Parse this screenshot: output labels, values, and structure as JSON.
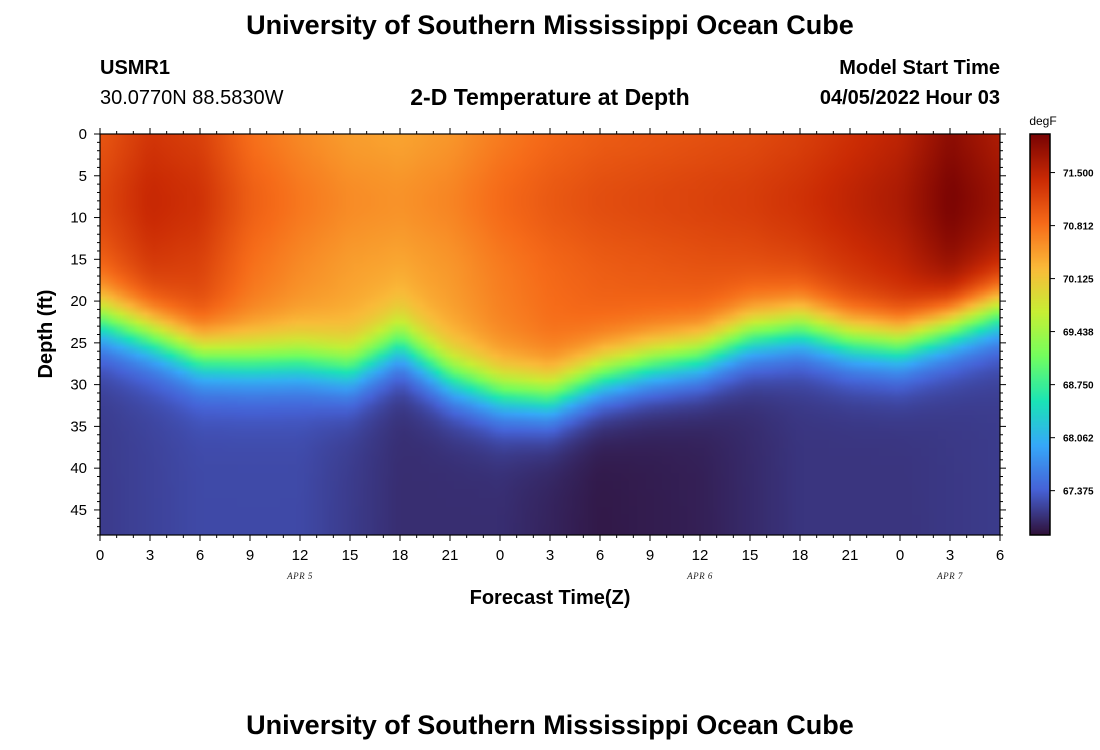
{
  "header": {
    "title": "University of Southern Mississippi Ocean Cube",
    "station_id": "USMR1",
    "coordinates": "30.0770N  88.5830W",
    "plot_title": "2-D Temperature at Depth",
    "model_start_label": "Model Start Time",
    "model_start_value": "04/05/2022 Hour 03"
  },
  "footer": {
    "title": "University of Southern Mississippi Ocean Cube"
  },
  "colors": {
    "colormap": [
      "#30123b",
      "#4662d7",
      "#36a8f9",
      "#1ae4b6",
      "#72fe5e",
      "#c7ef34",
      "#faba39",
      "#f66b19",
      "#ca2a04",
      "#7a0403"
    ]
  },
  "chart_data": {
    "type": "heatmap",
    "title": "2-D Temperature at Depth",
    "xlabel": "Forecast Time(Z)",
    "ylabel": "Depth (ft)",
    "x_hours_range": [
      0,
      54
    ],
    "x_ticks": [
      {
        "hour": 0,
        "label": "0"
      },
      {
        "hour": 3,
        "label": "3"
      },
      {
        "hour": 6,
        "label": "6"
      },
      {
        "hour": 9,
        "label": "9"
      },
      {
        "hour": 12,
        "label": "12"
      },
      {
        "hour": 15,
        "label": "15"
      },
      {
        "hour": 18,
        "label": "18"
      },
      {
        "hour": 21,
        "label": "21"
      },
      {
        "hour": 24,
        "label": "0"
      },
      {
        "hour": 27,
        "label": "3"
      },
      {
        "hour": 30,
        "label": "6"
      },
      {
        "hour": 33,
        "label": "9"
      },
      {
        "hour": 36,
        "label": "12"
      },
      {
        "hour": 39,
        "label": "15"
      },
      {
        "hour": 42,
        "label": "18"
      },
      {
        "hour": 45,
        "label": "21"
      },
      {
        "hour": 48,
        "label": "0"
      },
      {
        "hour": 51,
        "label": "3"
      },
      {
        "hour": 54,
        "label": "6"
      }
    ],
    "date_labels": [
      {
        "hour": 12,
        "label": "APR 5"
      },
      {
        "hour": 36,
        "label": "APR 6"
      },
      {
        "hour": 51,
        "label": "APR 7"
      }
    ],
    "y_range": [
      0,
      48
    ],
    "y_ticks": [
      0,
      5,
      10,
      15,
      20,
      25,
      30,
      35,
      40,
      45
    ],
    "colorbar": {
      "unit": "degF",
      "min": 66.8,
      "max": 72.0,
      "ticks": [
        "71.500",
        "70.812",
        "70.125",
        "69.438",
        "68.750",
        "68.062",
        "67.375"
      ]
    },
    "thermocline_depth_ft": [
      {
        "hour": 0,
        "depth": 22
      },
      {
        "hour": 3,
        "depth": 24
      },
      {
        "hour": 6,
        "depth": 26.5
      },
      {
        "hour": 9,
        "depth": 27
      },
      {
        "hour": 12,
        "depth": 27
      },
      {
        "hour": 15,
        "depth": 28
      },
      {
        "hour": 18,
        "depth": 25
      },
      {
        "hour": 21,
        "depth": 29
      },
      {
        "hour": 24,
        "depth": 31
      },
      {
        "hour": 27,
        "depth": 31.5
      },
      {
        "hour": 30,
        "depth": 29
      },
      {
        "hour": 33,
        "depth": 27.5
      },
      {
        "hour": 36,
        "depth": 26.5
      },
      {
        "hour": 39,
        "depth": 24
      },
      {
        "hour": 42,
        "depth": 23
      },
      {
        "hour": 45,
        "depth": 24.5
      },
      {
        "hour": 48,
        "depth": 25
      },
      {
        "hour": 51,
        "depth": 23
      },
      {
        "hour": 54,
        "depth": 21
      }
    ],
    "surface_temp_degF": [
      {
        "hour": 0,
        "value": 71.0
      },
      {
        "hour": 3,
        "value": 71.3
      },
      {
        "hour": 6,
        "value": 71.2
      },
      {
        "hour": 9,
        "value": 70.8
      },
      {
        "hour": 12,
        "value": 70.6
      },
      {
        "hour": 15,
        "value": 70.45
      },
      {
        "hour": 18,
        "value": 70.4
      },
      {
        "hour": 21,
        "value": 70.5
      },
      {
        "hour": 24,
        "value": 70.7
      },
      {
        "hour": 27,
        "value": 70.85
      },
      {
        "hour": 30,
        "value": 70.95
      },
      {
        "hour": 33,
        "value": 71.0
      },
      {
        "hour": 36,
        "value": 71.05
      },
      {
        "hour": 39,
        "value": 71.1
      },
      {
        "hour": 42,
        "value": 71.2
      },
      {
        "hour": 45,
        "value": 71.35
      },
      {
        "hour": 48,
        "value": 71.5
      },
      {
        "hour": 51,
        "value": 71.85
      },
      {
        "hour": 54,
        "value": 71.6
      }
    ],
    "bottom_temp_degF": [
      {
        "hour": 0,
        "value": 67.1
      },
      {
        "hour": 6,
        "value": 67.2
      },
      {
        "hour": 12,
        "value": 67.2
      },
      {
        "hour": 18,
        "value": 67.0
      },
      {
        "hour": 24,
        "value": 67.0
      },
      {
        "hour": 30,
        "value": 66.85
      },
      {
        "hour": 36,
        "value": 66.9
      },
      {
        "hour": 42,
        "value": 67.05
      },
      {
        "hour": 48,
        "value": 67.05
      },
      {
        "hour": 54,
        "value": 67.1
      }
    ]
  }
}
